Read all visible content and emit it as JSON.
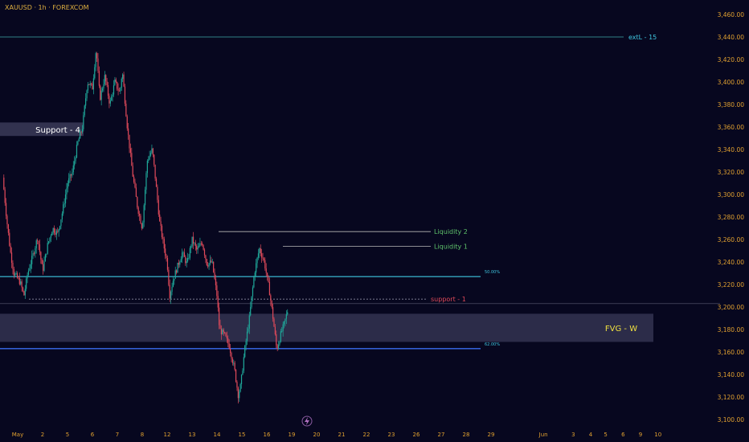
{
  "header": {
    "symbol": "XAUUSD · 1h · FOREXCOM"
  },
  "colors": {
    "background": "#07071f",
    "up": "#1fa89a",
    "down": "#e04a5a",
    "price_axis_text": "#e0a030",
    "time_axis_text": "#e0a030",
    "ext_line": "#2f7f86",
    "liquidity": "#b8b8b8",
    "liquidity_text": "#5ec06a",
    "fib_line": "#3fc7e0",
    "support1_text": "#e04a5a",
    "fvg_text": "#f0e040",
    "zone_fill": "#3a3a58"
  },
  "chart_data": {
    "type": "candlestick",
    "ylim": [
      3095,
      3470
    ],
    "yticks": [
      "3,460.00",
      "3,440.00",
      "3,420.00",
      "3,400.00",
      "3,380.00",
      "3,360.00",
      "3,340.00",
      "3,320.00",
      "3,300.00",
      "3,280.00",
      "3,260.00",
      "3,240.00",
      "3,220.00",
      "3,200.00",
      "3,180.00",
      "3,160.00",
      "3,140.00",
      "3,120.00",
      "3,100.00"
    ],
    "ytick_values": [
      3460,
      3440,
      3420,
      3400,
      3380,
      3360,
      3340,
      3320,
      3300,
      3280,
      3260,
      3240,
      3220,
      3200,
      3180,
      3160,
      3140,
      3120,
      3100
    ],
    "xticks": [
      {
        "label": "May",
        "day": 0
      },
      {
        "label": "2",
        "day": 1
      },
      {
        "label": "5",
        "day": 2
      },
      {
        "label": "6",
        "day": 3
      },
      {
        "label": "7",
        "day": 4
      },
      {
        "label": "8",
        "day": 5
      },
      {
        "label": "12",
        "day": 6
      },
      {
        "label": "13",
        "day": 7
      },
      {
        "label": "14",
        "day": 8
      },
      {
        "label": "15",
        "day": 9
      },
      {
        "label": "16",
        "day": 10
      },
      {
        "label": "19",
        "day": 11
      },
      {
        "label": "20",
        "day": 12
      },
      {
        "label": "21",
        "day": 13
      },
      {
        "label": "22",
        "day": 14
      },
      {
        "label": "23",
        "day": 15
      },
      {
        "label": "26",
        "day": 16
      },
      {
        "label": "27",
        "day": 17
      },
      {
        "label": "28",
        "day": 18
      },
      {
        "label": "29",
        "day": 19
      },
      {
        "label": "Jun",
        "day": 21.1
      },
      {
        "label": "3",
        "day": 22.3
      },
      {
        "label": "4",
        "day": 23
      },
      {
        "label": "5",
        "day": 23.6
      },
      {
        "label": "6",
        "day": 24.3
      },
      {
        "label": "9",
        "day": 25
      },
      {
        "label": "10",
        "day": 25.7
      }
    ],
    "path": [
      [
        -0.6,
        3315
      ],
      [
        -0.45,
        3280
      ],
      [
        -0.3,
        3250
      ],
      [
        -0.15,
        3230
      ],
      [
        0.1,
        3222
      ],
      [
        0.25,
        3210
      ],
      [
        0.4,
        3230
      ],
      [
        0.6,
        3245
      ],
      [
        0.8,
        3262
      ],
      [
        1.0,
        3232
      ],
      [
        1.2,
        3255
      ],
      [
        1.4,
        3270
      ],
      [
        1.6,
        3265
      ],
      [
        1.8,
        3285
      ],
      [
        2.0,
        3310
      ],
      [
        2.2,
        3320
      ],
      [
        2.4,
        3345
      ],
      [
        2.6,
        3360
      ],
      [
        2.8,
        3400
      ],
      [
        3.0,
        3395
      ],
      [
        3.15,
        3430
      ],
      [
        3.3,
        3385
      ],
      [
        3.5,
        3405
      ],
      [
        3.7,
        3380
      ],
      [
        3.9,
        3400
      ],
      [
        4.1,
        3390
      ],
      [
        4.2,
        3410
      ],
      [
        4.4,
        3360
      ],
      [
        4.6,
        3320
      ],
      [
        4.8,
        3290
      ],
      [
        5.0,
        3270
      ],
      [
        5.2,
        3330
      ],
      [
        5.4,
        3340
      ],
      [
        5.5,
        3320
      ],
      [
        5.7,
        3275
      ],
      [
        5.9,
        3250
      ],
      [
        6.0,
        3240
      ],
      [
        6.1,
        3210
      ],
      [
        6.25,
        3225
      ],
      [
        6.4,
        3235
      ],
      [
        6.6,
        3248
      ],
      [
        6.8,
        3238
      ],
      [
        7.0,
        3260
      ],
      [
        7.2,
        3250
      ],
      [
        7.4,
        3258
      ],
      [
        7.6,
        3238
      ],
      [
        7.8,
        3240
      ],
      [
        8.0,
        3210
      ],
      [
        8.1,
        3180
      ],
      [
        8.3,
        3175
      ],
      [
        8.5,
        3165
      ],
      [
        8.7,
        3145
      ],
      [
        8.85,
        3122
      ],
      [
        8.95,
        3130
      ],
      [
        9.1,
        3160
      ],
      [
        9.3,
        3190
      ],
      [
        9.5,
        3230
      ],
      [
        9.7,
        3252
      ],
      [
        9.9,
        3240
      ],
      [
        10.1,
        3215
      ],
      [
        10.25,
        3190
      ],
      [
        10.4,
        3162
      ],
      [
        10.55,
        3175
      ],
      [
        10.7,
        3185
      ],
      [
        10.85,
        3198
      ]
    ],
    "levels": {
      "extl": {
        "value": 3440,
        "label": "extL - 15"
      },
      "liquidity_2": {
        "value": 3267,
        "label": "Liquidity 2"
      },
      "liquidity_1": {
        "value": 3254,
        "label": "Liquidity 1"
      },
      "fib_50": {
        "value": 3227,
        "label": "50.00%"
      },
      "support_1": {
        "value": 3207,
        "label": "support - 1"
      },
      "current": {
        "value": 3203
      },
      "fib_62": {
        "value": 3163,
        "label": "62.00%"
      }
    },
    "zones": {
      "support_4": {
        "label": "Support - 4",
        "low": 3352,
        "high": 3364
      },
      "fvg": {
        "label": "FVG - W",
        "low": 3169,
        "high": 3194
      }
    }
  }
}
